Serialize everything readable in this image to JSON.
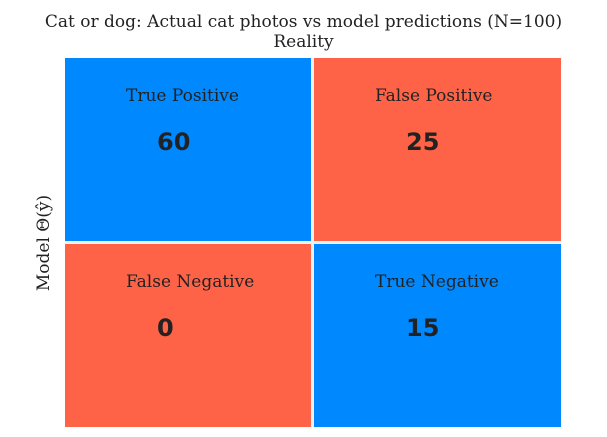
{
  "chart_data": {
    "type": "heatmap",
    "title": "Cat or dog: Actual cat photos vs model predictions (N=100)",
    "xlabel": "Reality",
    "ylabel": "Model Θ(ŷ)",
    "cells": [
      {
        "label": "True Positive",
        "value": 60,
        "color": "#0088ff"
      },
      {
        "label": "False Positive",
        "value": 25,
        "color": "#ff6347"
      },
      {
        "label": "False Negative",
        "value": 0,
        "color": "#ff6347"
      },
      {
        "label": "True Negative",
        "value": 15,
        "color": "#0088ff"
      }
    ]
  },
  "colors": {
    "positive_cell": "#0088ff",
    "negative_cell": "#ff6347",
    "separator": "#f0f0f0",
    "text": "#222222"
  }
}
